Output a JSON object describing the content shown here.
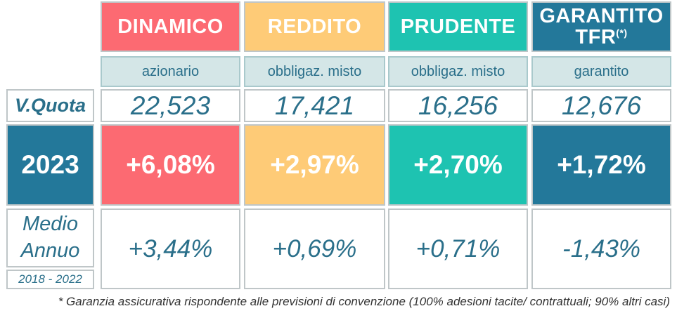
{
  "chart_data": {
    "type": "table",
    "funds": [
      {
        "name": "DINAMICO",
        "category": "azionario",
        "quota": "22,523",
        "y2023": "+6,08%",
        "avg": "+3,44%",
        "color": "#fc6a72"
      },
      {
        "name": "REDDITO",
        "category": "obbligaz. misto",
        "quota": "17,421",
        "y2023": "+2,97%",
        "avg": "+0,69%",
        "color": "#fecb77"
      },
      {
        "name": "PRUDENTE",
        "category": "obbligaz. misto",
        "quota": "16,256",
        "y2023": "+2,70%",
        "avg": "+0,71%",
        "color": "#1ec3b1"
      },
      {
        "name": "GARANTITO",
        "name_line2": "TFR",
        "name_sup": "(*)",
        "category": "garantito",
        "quota": "12,676",
        "y2023": "+1,72%",
        "avg": "-1,43%",
        "color": "#23789a"
      }
    ],
    "row_labels": {
      "quota": "V.Quota",
      "year": "2023",
      "avg_line1": "Medio",
      "avg_line2": "Annuo",
      "period": "2018 - 2022"
    },
    "footnote": "* Garanzia assicurativa rispondente alle previsioni di convenzione (100% adesioni tacite/ contrattuali; 90% altri casi)"
  }
}
